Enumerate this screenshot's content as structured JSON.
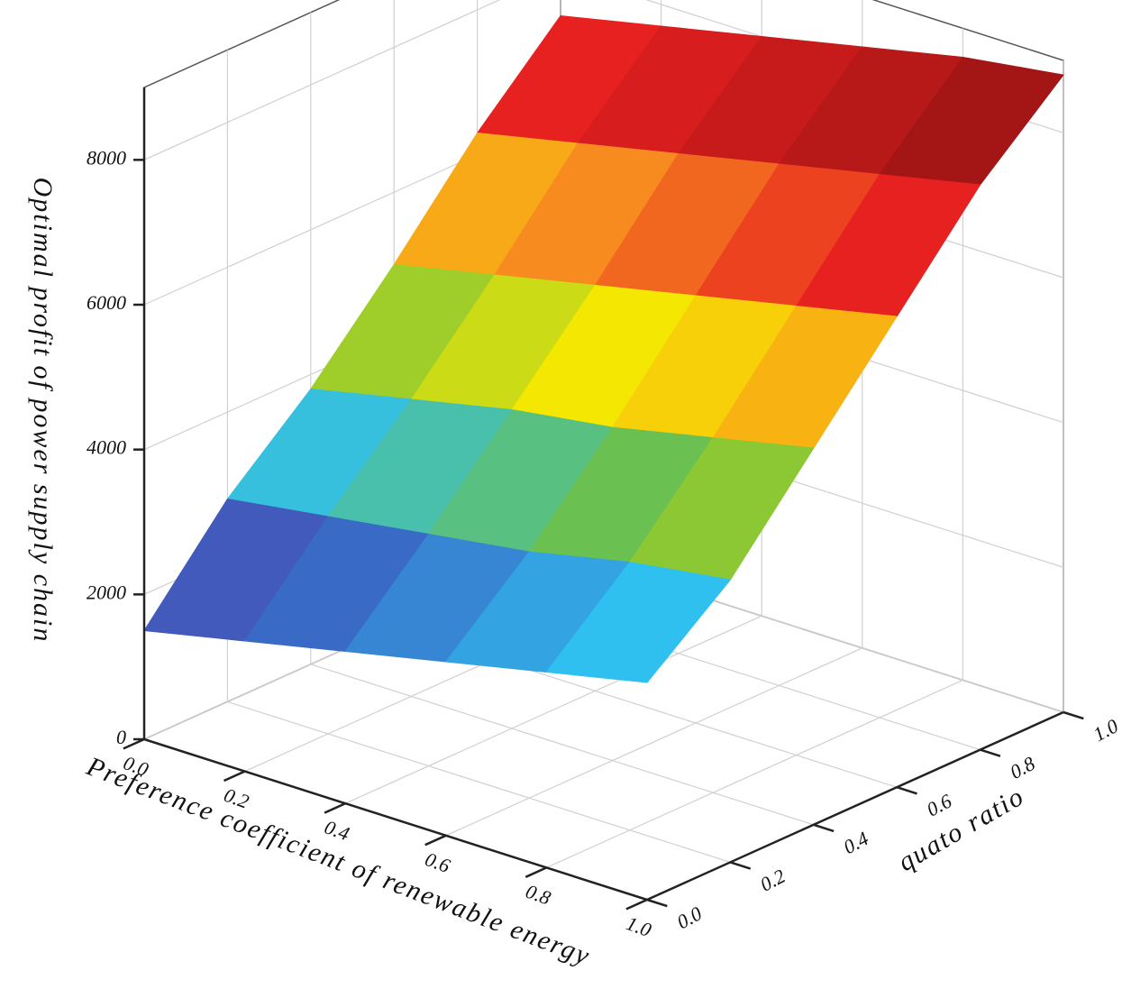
{
  "chart_data": {
    "type": "surface3d",
    "x_label": "Preference coefficient of renewable energy",
    "y_label": "quato ratio",
    "z_label": "Optimal profit of power supply chain",
    "x": [
      0,
      0.2,
      0.4,
      0.6,
      0.8,
      1
    ],
    "y": [
      0,
      0.2,
      0.4,
      0.6,
      0.8,
      1
    ],
    "z": [
      [
        1500,
        1800,
        2100,
        2400,
        2700,
        3000
      ],
      [
        2800,
        3000,
        3200,
        3400,
        3700,
        3900
      ],
      [
        3800,
        4100,
        4400,
        4600,
        4900,
        5200
      ],
      [
        5000,
        5300,
        5600,
        5900,
        6200,
        6500
      ],
      [
        6300,
        6600,
        6900,
        7200,
        7500,
        7800
      ],
      [
        7400,
        7700,
        8000,
        8300,
        8600,
        8800
      ]
    ],
    "xlim": [
      0,
      1
    ],
    "ylim": [
      0,
      1
    ],
    "zlim": [
      0,
      9000
    ],
    "xticks": [
      {
        "value": 0,
        "label": "0.0"
      },
      0.2,
      0.4,
      0.6,
      0.8,
      {
        "value": 1,
        "label": "1.0"
      }
    ],
    "yticks": [
      {
        "value": 0,
        "label": "0.0"
      },
      0.2,
      0.4,
      0.6,
      0.8,
      {
        "value": 1,
        "label": "1.0"
      }
    ],
    "zticks": [
      0,
      2000,
      4000,
      6000,
      8000
    ],
    "grid": true,
    "colormap": [
      "#6a3fa0",
      "#3a5fc0",
      "#30c0f0",
      "#70c040",
      "#f8e800",
      "#f89020",
      "#e82020",
      "#b81818",
      "#7a0e0e"
    ]
  }
}
